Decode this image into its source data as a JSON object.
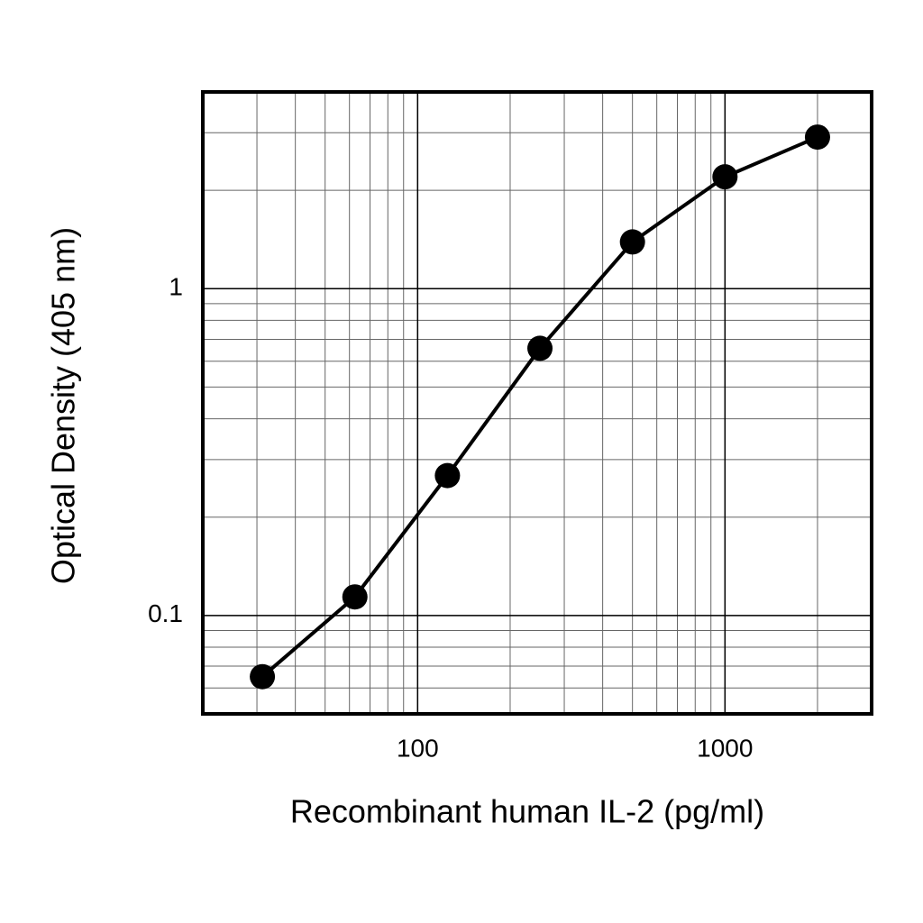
{
  "chart_data": {
    "type": "line",
    "xlabel": "Recombinant human IL-2 (pg/ml)",
    "ylabel": "Optical Density (405 nm)",
    "x": [
      31.25,
      62.5,
      125,
      250,
      500,
      1000,
      2000
    ],
    "series": [
      {
        "color": "#000000",
        "values": [
          0.065,
          0.114,
          0.268,
          0.657,
          1.39,
          2.2,
          2.91
        ]
      }
    ],
    "xlim": [
      20,
      3000
    ],
    "ylim": [
      0.05,
      4
    ],
    "xticks": [
      100,
      1000
    ],
    "yticks": [
      0.1,
      1
    ],
    "xlog": true,
    "ylog": true,
    "grid": true
  }
}
